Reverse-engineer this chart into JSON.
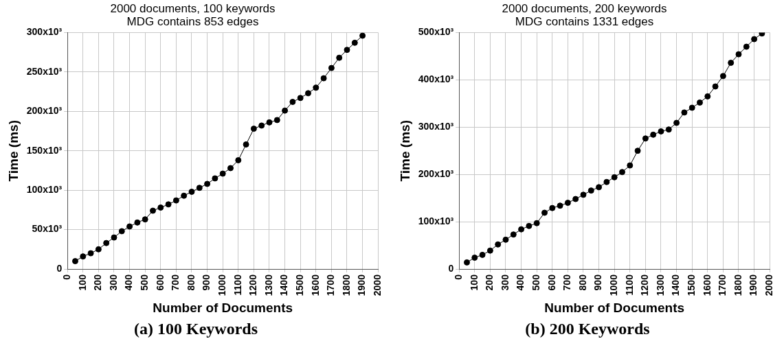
{
  "chart_data": [
    {
      "type": "line",
      "title": [
        "2000 documents, 100 keywords",
        "MDG contains 853 edges"
      ],
      "xlabel": "Number of Documents",
      "ylabel": "Time (ms)",
      "annotations": [
        "(a) 100 Keywords"
      ],
      "x": [
        50,
        100,
        150,
        200,
        250,
        300,
        350,
        400,
        450,
        500,
        550,
        600,
        650,
        700,
        750,
        800,
        850,
        900,
        950,
        1000,
        1050,
        1100,
        1150,
        1200,
        1250,
        1300,
        1350,
        1400,
        1450,
        1500,
        1550,
        1600,
        1650,
        1700,
        1750,
        1800,
        1850,
        1900
      ],
      "series": [
        {
          "color": "#000000",
          "values": [
            10000,
            16000,
            20000,
            25000,
            33000,
            40000,
            48000,
            54000,
            59000,
            63000,
            74000,
            78000,
            82000,
            87000,
            93000,
            98000,
            103000,
            108000,
            115000,
            121000,
            128000,
            138000,
            158000,
            178000,
            182000,
            186000,
            189000,
            201000,
            212000,
            217000,
            223000,
            230000,
            242000,
            255000,
            268000,
            278000,
            287000,
            296000
          ]
        }
      ],
      "xlim": [
        0,
        2000
      ],
      "xticks": [
        0,
        100,
        200,
        300,
        400,
        500,
        600,
        700,
        800,
        900,
        1000,
        1100,
        1200,
        1300,
        1400,
        1500,
        1600,
        1700,
        1800,
        1900,
        2000
      ],
      "ylim": [
        0,
        300000
      ],
      "yticks": [
        0,
        {
          "value": 50000,
          "label": "50x10³"
        },
        {
          "value": 100000,
          "label": "100x10³"
        },
        {
          "value": 150000,
          "label": "150x10³"
        },
        {
          "value": 200000,
          "label": "200x10³"
        },
        {
          "value": 250000,
          "label": "250x10³"
        },
        {
          "value": 300000,
          "label": "300x10³"
        }
      ],
      "grid": true,
      "marker": "circle",
      "line_style": "solid"
    },
    {
      "type": "line",
      "title": [
        "2000 documents, 200 keywords",
        "MDG contains 1331 edges"
      ],
      "xlabel": "Number of Documents",
      "ylabel": "Time (ms)",
      "annotations": [
        "(b) 200 Keywords"
      ],
      "x": [
        50,
        100,
        150,
        200,
        250,
        300,
        350,
        400,
        450,
        500,
        550,
        600,
        650,
        700,
        750,
        800,
        850,
        900,
        950,
        1000,
        1050,
        1100,
        1150,
        1200,
        1250,
        1300,
        1350,
        1400,
        1450,
        1500,
        1550,
        1600,
        1650,
        1700,
        1750,
        1800,
        1850,
        1900,
        1950
      ],
      "series": [
        {
          "color": "#000000",
          "values": [
            14000,
            24000,
            30000,
            39000,
            52000,
            62000,
            73000,
            84000,
            91000,
            97000,
            119000,
            129000,
            134000,
            140000,
            148000,
            157000,
            166000,
            173000,
            184000,
            194000,
            205000,
            219000,
            250000,
            276000,
            284000,
            291000,
            295000,
            309000,
            331000,
            341000,
            352000,
            365000,
            386000,
            408000,
            436000,
            454000,
            470000,
            486000,
            498000
          ]
        }
      ],
      "xlim": [
        0,
        2000
      ],
      "xticks": [
        0,
        100,
        200,
        300,
        400,
        500,
        600,
        700,
        800,
        900,
        1000,
        1100,
        1200,
        1300,
        1400,
        1500,
        1600,
        1700,
        1800,
        1900,
        2000
      ],
      "ylim": [
        0,
        500000
      ],
      "yticks": [
        0,
        {
          "value": 100000,
          "label": "100x10³"
        },
        {
          "value": 200000,
          "label": "200x10³"
        },
        {
          "value": 300000,
          "label": "300x10³"
        },
        {
          "value": 400000,
          "label": "400x10³"
        },
        {
          "value": 500000,
          "label": "500x10³"
        }
      ],
      "grid": true,
      "marker": "circle",
      "line_style": "solid"
    }
  ]
}
